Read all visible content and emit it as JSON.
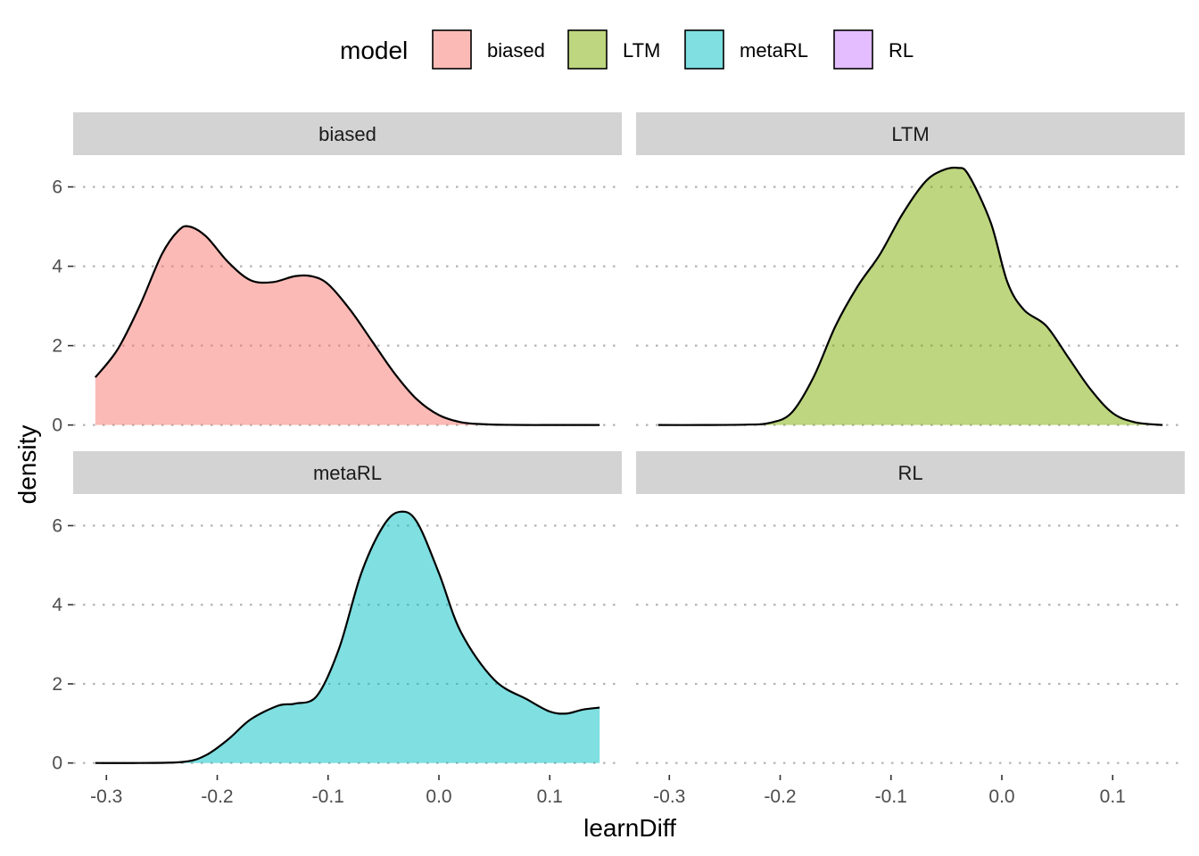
{
  "chart_data": {
    "type": "area",
    "facet_by": "model",
    "facets": [
      {
        "name": "biased",
        "color": "#F8766D",
        "x": [
          -0.31,
          -0.29,
          -0.27,
          -0.25,
          -0.235,
          -0.225,
          -0.21,
          -0.19,
          -0.17,
          -0.15,
          -0.13,
          -0.115,
          -0.1,
          -0.08,
          -0.06,
          -0.04,
          -0.02,
          0.0,
          0.02,
          0.04,
          0.06,
          0.08,
          0.1,
          0.12,
          0.145
        ],
        "y": [
          1.2,
          1.9,
          3.0,
          4.3,
          4.9,
          5.0,
          4.75,
          4.1,
          3.65,
          3.6,
          3.75,
          3.75,
          3.55,
          2.9,
          2.1,
          1.3,
          0.65,
          0.25,
          0.07,
          0.02,
          0.005,
          0.0,
          0.0,
          0.0,
          0.0
        ]
      },
      {
        "name": "LTM",
        "color": "#7CAE00",
        "x": [
          -0.31,
          -0.27,
          -0.23,
          -0.21,
          -0.19,
          -0.17,
          -0.15,
          -0.13,
          -0.11,
          -0.09,
          -0.07,
          -0.055,
          -0.04,
          -0.03,
          -0.01,
          0.005,
          0.02,
          0.04,
          0.06,
          0.08,
          0.1,
          0.12,
          0.145
        ],
        "y": [
          0.0,
          0.0,
          0.01,
          0.05,
          0.3,
          1.2,
          2.5,
          3.5,
          4.3,
          5.3,
          6.1,
          6.4,
          6.48,
          6.3,
          5.1,
          3.6,
          2.9,
          2.5,
          1.7,
          0.9,
          0.3,
          0.07,
          0.0
        ]
      },
      {
        "name": "metaRL",
        "color": "#00BFC4",
        "x": [
          -0.31,
          -0.27,
          -0.23,
          -0.21,
          -0.19,
          -0.17,
          -0.145,
          -0.13,
          -0.11,
          -0.09,
          -0.07,
          -0.05,
          -0.035,
          -0.02,
          0.0,
          0.02,
          0.05,
          0.08,
          0.1,
          0.115,
          0.13,
          0.145
        ],
        "y": [
          0.0,
          0.0,
          0.03,
          0.2,
          0.6,
          1.1,
          1.45,
          1.5,
          1.7,
          2.9,
          4.8,
          6.0,
          6.35,
          6.1,
          4.8,
          3.3,
          2.1,
          1.6,
          1.3,
          1.25,
          1.35,
          1.4
        ]
      },
      {
        "name": "RL",
        "color": "#C77CFF",
        "x": [],
        "y": []
      }
    ],
    "title": "",
    "xlabel": "learnDiff",
    "ylabel": "density",
    "xlim": [
      -0.33,
      0.165
    ],
    "ylim": [
      -0.3,
      6.8
    ],
    "x_ticks": [
      "-0.3",
      "-0.2",
      "-0.1",
      "0.0",
      "0.1"
    ],
    "y_ticks": [
      "0",
      "2",
      "4",
      "6"
    ],
    "grid": "horizontal dotted",
    "legend": {
      "title": "model",
      "position": "top",
      "items": [
        "biased",
        "LTM",
        "metaRL",
        "RL"
      ]
    }
  }
}
